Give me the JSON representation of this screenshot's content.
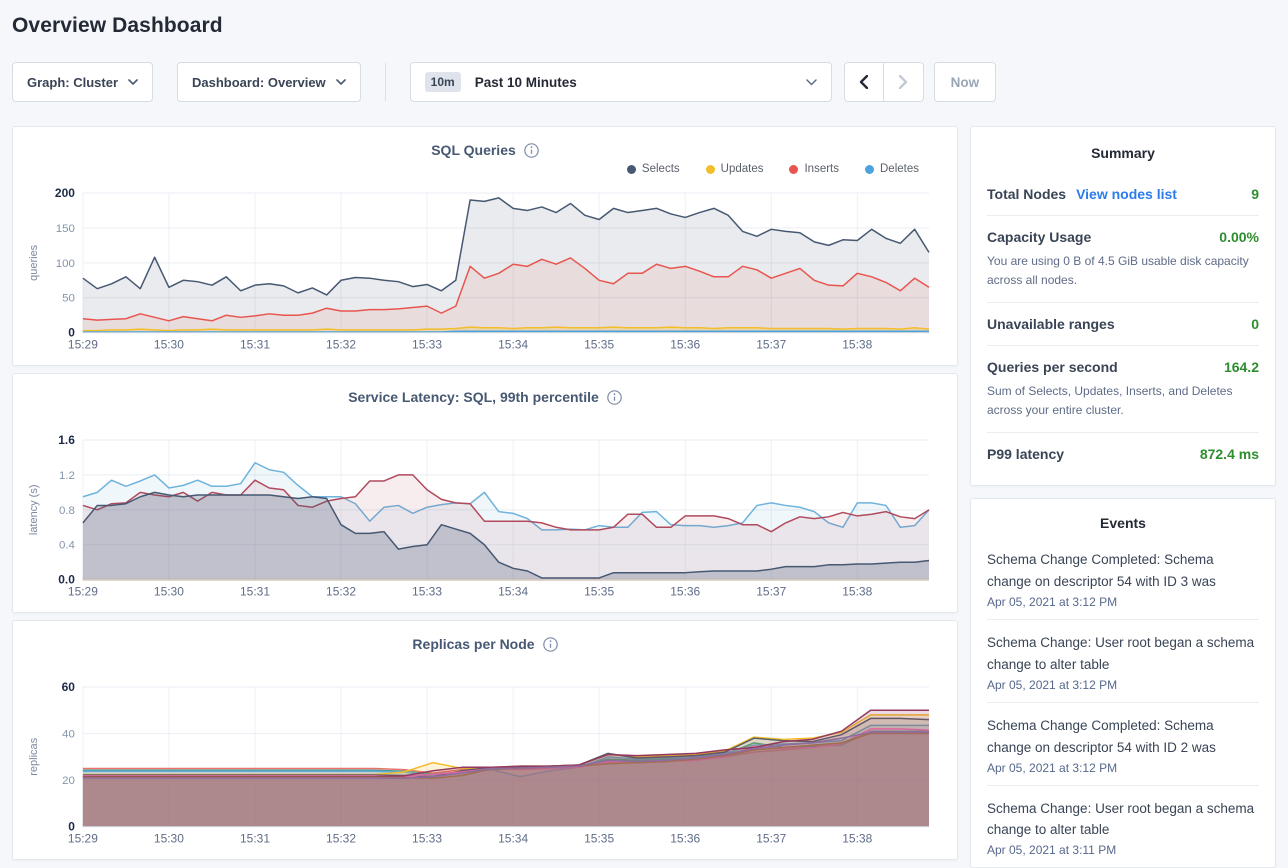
{
  "header": {
    "title": "Overview Dashboard"
  },
  "toolbar": {
    "graph_label": "Graph: Cluster",
    "dashboard_label": "Dashboard: Overview",
    "time_badge": "10m",
    "time_label": "Past 10 Minutes",
    "now_label": "Now"
  },
  "summary": {
    "title": "Summary",
    "rows": [
      {
        "label": "Total Nodes",
        "link": "View nodes list",
        "value": "9"
      },
      {
        "label": "Capacity Usage",
        "value": "0.00%",
        "note": "You are using 0 B of 4.5 GiB usable disk capacity across all nodes."
      },
      {
        "label": "Unavailable ranges",
        "value": "0"
      },
      {
        "label": "Queries per second",
        "value": "164.2",
        "note": "Sum of Selects, Updates, Inserts, and Deletes across your entire cluster."
      },
      {
        "label": "P99 latency",
        "value": "872.4 ms"
      }
    ]
  },
  "events": {
    "title": "Events",
    "items": [
      {
        "message": "Schema Change Completed: Schema change on descriptor 54 with ID 3 was",
        "time": "Apr 05, 2021 at 3:12 PM"
      },
      {
        "message": "Schema Change: User root began a schema change to alter table",
        "time": "Apr 05, 2021 at 3:12 PM"
      },
      {
        "message": "Schema Change Completed: Schema change on descriptor 54 with ID 2 was",
        "time": "Apr 05, 2021 at 3:12 PM"
      },
      {
        "message": "Schema Change: User root began a schema change to alter table",
        "time": "Apr 05, 2021 at 3:11 PM"
      }
    ]
  },
  "colors": {
    "page_bg": "#f5f7fa",
    "accent_green": "#2e8d2e",
    "link_blue": "#2b7ceb",
    "chart_title": "#475872",
    "selects": "#475872",
    "updates": "#f2be2c",
    "inserts": "#e8554f",
    "deletes": "#4ba3dd"
  },
  "chart_data": [
    {
      "type": "area",
      "title": "SQL Queries",
      "ylabel": "queries",
      "ylim": [
        0,
        200
      ],
      "yticks": [
        0,
        50,
        100,
        150,
        200
      ],
      "ytick_labels": [
        "0",
        "50",
        "100",
        "150",
        "200"
      ],
      "x_tick_labels": [
        "15:29",
        "15:30",
        "15:31",
        "15:32",
        "15:33",
        "15:34",
        "15:35",
        "15:36",
        "15:37",
        "15:38"
      ],
      "x_tick_interval_s": 60,
      "total_seconds": 590,
      "grid": true,
      "legend_position": "top-right",
      "series": [
        {
          "name": "Selects",
          "color": "#475872",
          "fill_opacity": 0.12,
          "values": [
            78,
            63,
            70,
            80,
            63,
            108,
            65,
            75,
            73,
            68,
            80,
            60,
            68,
            70,
            67,
            57,
            64,
            54,
            75,
            79,
            78,
            75,
            73,
            66,
            69,
            60,
            75,
            190,
            188,
            193,
            178,
            175,
            180,
            172,
            185,
            168,
            162,
            178,
            172,
            175,
            178,
            170,
            165,
            172,
            178,
            168,
            145,
            138,
            148,
            145,
            143,
            130,
            125,
            133,
            132,
            148,
            135,
            128,
            148,
            115
          ]
        },
        {
          "name": "Inserts",
          "color": "#e8554f",
          "fill_opacity": 0.1,
          "values": [
            20,
            18,
            19,
            20,
            27,
            22,
            17,
            23,
            20,
            17,
            25,
            22,
            24,
            27,
            25,
            25,
            28,
            35,
            31,
            31,
            33,
            33,
            34,
            36,
            38,
            28,
            38,
            95,
            78,
            85,
            98,
            95,
            105,
            98,
            107,
            92,
            75,
            70,
            85,
            85,
            98,
            92,
            95,
            88,
            80,
            80,
            95,
            90,
            78,
            85,
            92,
            75,
            68,
            67,
            85,
            80,
            72,
            60,
            78,
            65
          ]
        },
        {
          "name": "Updates",
          "color": "#f2be2c",
          "fill_opacity": 0.25,
          "values": [
            3,
            3,
            4,
            4,
            5,
            4,
            3,
            4,
            4,
            5,
            4,
            4,
            4,
            4,
            4,
            4,
            4,
            5,
            4,
            4,
            4,
            4,
            4,
            4,
            5,
            5,
            6,
            8,
            7,
            7,
            6,
            7,
            7,
            8,
            7,
            7,
            7,
            8,
            7,
            7,
            7,
            8,
            7,
            7,
            6,
            7,
            7,
            7,
            6,
            6,
            6,
            6,
            6,
            5,
            6,
            6,
            6,
            5,
            7,
            5
          ]
        },
        {
          "name": "Deletes",
          "color": "#4ba3dd",
          "fill_opacity": 0.25,
          "values": [
            1,
            1,
            1,
            1,
            1,
            1,
            1,
            1,
            1,
            1,
            1,
            1,
            1,
            1,
            1,
            1,
            1,
            1,
            1,
            1,
            1,
            1,
            1,
            1,
            1,
            1,
            2,
            2,
            2,
            2,
            2,
            2,
            2,
            2,
            2,
            2,
            2,
            2,
            2,
            2,
            2,
            2,
            2,
            2,
            2,
            2,
            2,
            2,
            2,
            2,
            2,
            2,
            2,
            2,
            2,
            2,
            2,
            2,
            2,
            2
          ]
        }
      ],
      "legend": [
        "Selects",
        "Updates",
        "Inserts",
        "Deletes"
      ],
      "legend_colors": [
        "#475872",
        "#f2be2c",
        "#e8554f",
        "#4ba3dd"
      ]
    },
    {
      "type": "area",
      "title": "Service Latency: SQL, 99th percentile",
      "ylabel": "latency (s)",
      "ylim": [
        0,
        1.6
      ],
      "yticks": [
        0,
        0.4,
        0.8,
        1.2,
        1.6
      ],
      "ytick_labels": [
        "0.0",
        "0.4",
        "0.8",
        "1.2",
        "1.6"
      ],
      "x_tick_labels": [
        "15:29",
        "15:30",
        "15:31",
        "15:32",
        "15:33",
        "15:34",
        "15:35",
        "15:36",
        "15:37",
        "15:38"
      ],
      "x_tick_interval_s": 60,
      "total_seconds": 590,
      "grid": true,
      "series": [
        {
          "name": "",
          "color": "#6fb3dc",
          "fill_opacity": 0.1,
          "values": [
            0.95,
            1.0,
            1.14,
            1.07,
            1.13,
            1.2,
            1.05,
            1.08,
            1.14,
            1.07,
            1.07,
            1.1,
            1.34,
            1.26,
            1.23,
            1.08,
            0.95,
            0.95,
            0.95,
            0.87,
            0.67,
            0.83,
            0.85,
            0.76,
            0.83,
            0.86,
            0.88,
            0.87,
            1.0,
            0.78,
            0.76,
            0.7,
            0.57,
            0.57,
            0.58,
            0.57,
            0.62,
            0.6,
            0.6,
            0.77,
            0.78,
            0.63,
            0.62,
            0.62,
            0.6,
            0.62,
            0.65,
            0.85,
            0.88,
            0.85,
            0.83,
            0.78,
            0.65,
            0.6,
            0.88,
            0.88,
            0.85,
            0.6,
            0.62,
            0.8
          ]
        },
        {
          "name": "",
          "color": "#b04a5c",
          "fill_opacity": 0.1,
          "values": [
            0.85,
            0.8,
            0.87,
            0.88,
            1.0,
            0.97,
            0.95,
            1.0,
            0.9,
            1.0,
            0.97,
            0.97,
            1.14,
            1.05,
            1.03,
            0.85,
            0.83,
            0.9,
            0.93,
            0.95,
            1.13,
            1.13,
            1.2,
            1.2,
            1.03,
            0.92,
            0.88,
            0.87,
            0.67,
            0.67,
            0.67,
            0.67,
            0.65,
            0.6,
            0.57,
            0.57,
            0.57,
            0.6,
            0.75,
            0.75,
            0.6,
            0.6,
            0.73,
            0.73,
            0.73,
            0.7,
            0.63,
            0.63,
            0.55,
            0.65,
            0.72,
            0.7,
            0.72,
            0.77,
            0.73,
            0.75,
            0.78,
            0.72,
            0.7,
            0.8
          ]
        },
        {
          "name": "",
          "color": "#475872",
          "fill_opacity": 0.25,
          "values": [
            0.65,
            0.85,
            0.85,
            0.87,
            0.95,
            1.0,
            0.97,
            0.95,
            0.97,
            0.97,
            0.97,
            0.97,
            0.97,
            0.97,
            0.95,
            0.93,
            0.95,
            0.93,
            0.63,
            0.53,
            0.53,
            0.55,
            0.35,
            0.38,
            0.4,
            0.63,
            0.58,
            0.53,
            0.4,
            0.2,
            0.13,
            0.1,
            0.02,
            0.02,
            0.02,
            0.02,
            0.02,
            0.08,
            0.08,
            0.08,
            0.08,
            0.08,
            0.08,
            0.09,
            0.1,
            0.1,
            0.1,
            0.1,
            0.12,
            0.15,
            0.15,
            0.15,
            0.17,
            0.17,
            0.18,
            0.18,
            0.19,
            0.2,
            0.2,
            0.22
          ]
        },
        {
          "name": "",
          "color": "#bd7848",
          "fill_opacity": 0,
          "values": [
            0,
            0,
            0,
            0,
            0,
            0,
            0,
            0,
            0,
            0,
            0,
            0,
            0,
            0,
            0,
            0,
            0,
            0,
            0,
            0,
            0,
            0,
            0,
            0,
            0,
            0,
            0,
            0,
            0,
            0,
            0,
            0,
            0,
            0,
            0,
            0,
            0,
            0,
            0,
            0,
            0,
            0,
            0,
            0,
            0,
            0,
            0,
            0,
            0,
            0,
            0,
            0,
            0,
            0,
            0,
            0,
            0,
            0,
            0,
            0
          ]
        }
      ]
    },
    {
      "type": "area",
      "title": "Replicas per Node",
      "ylabel": "replicas",
      "ylim": [
        0,
        60
      ],
      "yticks": [
        0,
        20,
        40,
        60
      ],
      "ytick_labels": [
        "0",
        "20",
        "40",
        "60"
      ],
      "x_tick_labels": [
        "15:29",
        "15:30",
        "15:31",
        "15:32",
        "15:33",
        "15:34",
        "15:35",
        "15:36",
        "15:37",
        "15:38"
      ],
      "x_tick_interval_s": 60,
      "total_seconds": 590,
      "grid": true,
      "series": [
        {
          "name": "",
          "color": "#e8726d",
          "fill_opacity": 0.18,
          "values": [
            25,
            25,
            25,
            25,
            25,
            25,
            25,
            25,
            25,
            25,
            25,
            24.5,
            23,
            24.5,
            25,
            25.5,
            25.5,
            26,
            27.5,
            27.5,
            28,
            29,
            30,
            32,
            33,
            34,
            36,
            40,
            40,
            40
          ]
        },
        {
          "name": "",
          "color": "#41a487",
          "fill_opacity": 0.18,
          "values": [
            24.2,
            24.2,
            24.2,
            24.2,
            24.2,
            24.2,
            24.2,
            24.2,
            24.2,
            24.2,
            24.2,
            23.8,
            22.5,
            23.5,
            24.5,
            25,
            25.5,
            26,
            29,
            28.5,
            29,
            29.5,
            31,
            36,
            34,
            34.5,
            35,
            41,
            41,
            41
          ]
        },
        {
          "name": "",
          "color": "#64a8d8",
          "fill_opacity": 0.18,
          "values": [
            23.8,
            23.8,
            23.8,
            23.8,
            23.8,
            23.8,
            23.8,
            23.8,
            23.8,
            23.8,
            23.8,
            23.5,
            22,
            23,
            24.5,
            21.5,
            24,
            25.5,
            30,
            29,
            29.5,
            30,
            31.5,
            35,
            35.5,
            36,
            37,
            43.5,
            43.5,
            43.5
          ]
        },
        {
          "name": "",
          "color": "#f2be2c",
          "fill_opacity": 0.18,
          "values": [
            22.4,
            22.4,
            22.4,
            22.4,
            22.4,
            22.4,
            22.4,
            22.4,
            22.4,
            22.4,
            22.4,
            23.5,
            27.5,
            25,
            25.5,
            26,
            26,
            26.5,
            31,
            30,
            30.5,
            31,
            32.5,
            38.5,
            37.5,
            38,
            40.5,
            48,
            48,
            48
          ]
        },
        {
          "name": "",
          "color": "#5a5f6a",
          "fill_opacity": 0.18,
          "values": [
            22.2,
            22.2,
            22.2,
            22.2,
            22.2,
            22.2,
            22.2,
            22.2,
            22.2,
            22.2,
            22.2,
            22,
            21.5,
            24,
            25.5,
            25.5,
            26,
            26.5,
            31.5,
            29.5,
            30,
            30.5,
            32,
            38,
            37,
            36.5,
            39.5,
            46.5,
            46.5,
            46
          ]
        },
        {
          "name": "",
          "color": "#e873ae",
          "fill_opacity": 0.18,
          "values": [
            21.8,
            21.8,
            21.8,
            21.8,
            21.8,
            21.8,
            21.8,
            21.8,
            21.8,
            21.8,
            21.8,
            21.5,
            22.5,
            23.5,
            25,
            24.5,
            25,
            25.5,
            28,
            27.5,
            28,
            28.5,
            30,
            34.5,
            33.5,
            34,
            35.5,
            42,
            42,
            41.5
          ]
        },
        {
          "name": "",
          "color": "#93395f",
          "fill_opacity": 0.18,
          "values": [
            21.5,
            21.5,
            21.5,
            21.5,
            21.5,
            21.5,
            21.5,
            21.5,
            21.5,
            21.5,
            21.5,
            21.8,
            24,
            25.5,
            25.5,
            26,
            26,
            26.5,
            31,
            30.5,
            31,
            31.5,
            33,
            34,
            36.5,
            37.5,
            41,
            50,
            50,
            50
          ]
        },
        {
          "name": "",
          "color": "#a6703c",
          "fill_opacity": 0.18,
          "values": [
            21.2,
            21.2,
            21.2,
            21.2,
            21.2,
            21.2,
            21.2,
            21.2,
            21.2,
            21.2,
            21.2,
            21,
            20.8,
            22,
            24.8,
            25,
            25.5,
            26,
            27,
            27.5,
            28,
            29,
            30.5,
            33,
            34,
            35,
            36,
            40.3,
            40.3,
            40.3
          ]
        },
        {
          "name": "",
          "color": "#8e6c9e",
          "fill_opacity": 0.18,
          "values": [
            20.9,
            20.9,
            20.9,
            20.9,
            20.9,
            20.9,
            20.9,
            20.9,
            20.9,
            20.9,
            20.9,
            20.8,
            21.5,
            23,
            25,
            25.2,
            25.5,
            26,
            28.5,
            28,
            28.5,
            29.5,
            31,
            33.5,
            35,
            36,
            38,
            40.6,
            40.6,
            40.6
          ]
        }
      ]
    }
  ]
}
